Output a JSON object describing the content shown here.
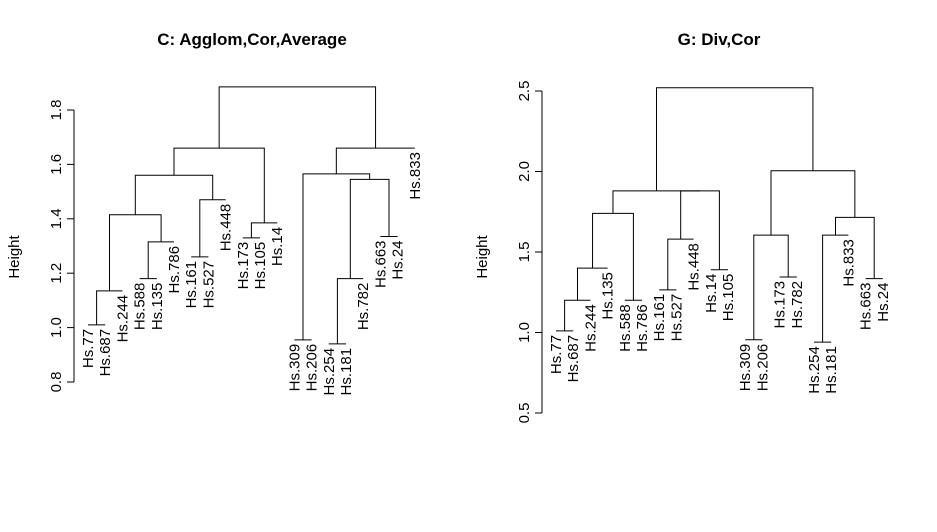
{
  "chart_data": [
    {
      "type": "dendrogram",
      "title": "C: Agglom,Cor,Average",
      "ylabel": "Height",
      "xlabel": "",
      "ylim": [
        0.8,
        1.9
      ],
      "yticks": [
        "0.8",
        "1.0",
        "1.2",
        "1.4",
        "1.6",
        "1.8"
      ],
      "leaves": [
        {
          "label": "Hs.77",
          "y": 1.01
        },
        {
          "label": "Hs.687",
          "y": 1.01
        },
        {
          "label": "Hs.244",
          "y": 1.135
        },
        {
          "label": "Hs.588",
          "y": 1.18
        },
        {
          "label": "Hs.135",
          "y": 1.18
        },
        {
          "label": "Hs.786",
          "y": 1.315
        },
        {
          "label": "Hs.161",
          "y": 1.26
        },
        {
          "label": "Hs.527",
          "y": 1.26
        },
        {
          "label": "Hs.448",
          "y": 1.47
        },
        {
          "label": "Hs.173",
          "y": 1.33
        },
        {
          "label": "Hs.105",
          "y": 1.33
        },
        {
          "label": "Hs.14",
          "y": 1.385
        },
        {
          "label": "Hs.309",
          "y": 0.955
        },
        {
          "label": "Hs.206",
          "y": 0.955
        },
        {
          "label": "Hs.254",
          "y": 0.94
        },
        {
          "label": "Hs.181",
          "y": 0.94
        },
        {
          "label": "Hs.782",
          "y": 1.18
        },
        {
          "label": "Hs.663",
          "y": 1.335
        },
        {
          "label": "Hs.24",
          "y": 1.335
        },
        {
          "label": "Hs.833",
          "y": 1.66
        }
      ],
      "merges": [
        {
          "a": -1,
          "b": -2,
          "height": 1.01
        },
        {
          "a": 1,
          "b": -3,
          "height": 1.135
        },
        {
          "a": -4,
          "b": -5,
          "height": 1.18
        },
        {
          "a": 3,
          "b": -6,
          "height": 1.315
        },
        {
          "a": 2,
          "b": 4,
          "height": 1.415
        },
        {
          "a": -7,
          "b": -8,
          "height": 1.26
        },
        {
          "a": 6,
          "b": -9,
          "height": 1.47
        },
        {
          "a": 5,
          "b": 7,
          "height": 1.56
        },
        {
          "a": -10,
          "b": -11,
          "height": 1.33
        },
        {
          "a": 9,
          "b": -12,
          "height": 1.385
        },
        {
          "a": 8,
          "b": 10,
          "height": 1.66
        },
        {
          "a": -13,
          "b": -14,
          "height": 0.955
        },
        {
          "a": -15,
          "b": -16,
          "height": 0.94
        },
        {
          "a": 13,
          "b": -17,
          "height": 1.18
        },
        {
          "a": -18,
          "b": -19,
          "height": 1.335
        },
        {
          "a": 14,
          "b": 15,
          "height": 1.545
        },
        {
          "a": 12,
          "b": 16,
          "height": 1.565
        },
        {
          "a": 17,
          "b": -20,
          "height": 1.66
        },
        {
          "a": 11,
          "b": 18,
          "height": 1.885
        }
      ]
    },
    {
      "type": "dendrogram",
      "title": "G: Div,Cor",
      "ylabel": "Height",
      "xlabel": "",
      "ylim": [
        0.5,
        2.55
      ],
      "yticks": [
        "0.5",
        "1.0",
        "1.5",
        "2.0",
        "2.5"
      ],
      "leaves": [
        {
          "label": "Hs.77",
          "y": 1.01
        },
        {
          "label": "Hs.687",
          "y": 1.01
        },
        {
          "label": "Hs.244",
          "y": 1.2
        },
        {
          "label": "Hs.135",
          "y": 1.4
        },
        {
          "label": "Hs.588",
          "y": 1.2
        },
        {
          "label": "Hs.786",
          "y": 1.2
        },
        {
          "label": "Hs.161",
          "y": 1.265
        },
        {
          "label": "Hs.527",
          "y": 1.265
        },
        {
          "label": "Hs.448",
          "y": 1.58
        },
        {
          "label": "Hs.14",
          "y": 1.39
        },
        {
          "label": "Hs.105",
          "y": 1.39
        },
        {
          "label": "Hs.309",
          "y": 0.955
        },
        {
          "label": "Hs.206",
          "y": 0.955
        },
        {
          "label": "Hs.173",
          "y": 1.345
        },
        {
          "label": "Hs.782",
          "y": 1.345
        },
        {
          "label": "Hs.254",
          "y": 0.94
        },
        {
          "label": "Hs.181",
          "y": 0.94
        },
        {
          "label": "Hs.833",
          "y": 1.605
        },
        {
          "label": "Hs.663",
          "y": 1.335
        },
        {
          "label": "Hs.24",
          "y": 1.335
        }
      ],
      "merges": [
        {
          "a": -1,
          "b": -2,
          "height": 1.01
        },
        {
          "a": 1,
          "b": -3,
          "height": 1.2
        },
        {
          "a": 2,
          "b": -4,
          "height": 1.4
        },
        {
          "a": -5,
          "b": -6,
          "height": 1.2
        },
        {
          "a": 3,
          "b": 4,
          "height": 1.74
        },
        {
          "a": -7,
          "b": -8,
          "height": 1.265
        },
        {
          "a": 6,
          "b": -9,
          "height": 1.58
        },
        {
          "a": -10,
          "b": -11,
          "height": 1.39
        },
        {
          "a": 7,
          "b": 8,
          "height": 1.88
        },
        {
          "a": 5,
          "b": 9,
          "height": 1.88
        },
        {
          "a": -12,
          "b": -13,
          "height": 0.955
        },
        {
          "a": -14,
          "b": -15,
          "height": 1.345
        },
        {
          "a": 11,
          "b": 12,
          "height": 1.605
        },
        {
          "a": -16,
          "b": -17,
          "height": 0.94
        },
        {
          "a": 14,
          "b": -18,
          "height": 1.605
        },
        {
          "a": -19,
          "b": -20,
          "height": 1.335
        },
        {
          "a": 15,
          "b": 16,
          "height": 1.715
        },
        {
          "a": 13,
          "b": 17,
          "height": 2.005
        },
        {
          "a": 10,
          "b": 18,
          "height": 2.52
        }
      ]
    }
  ]
}
